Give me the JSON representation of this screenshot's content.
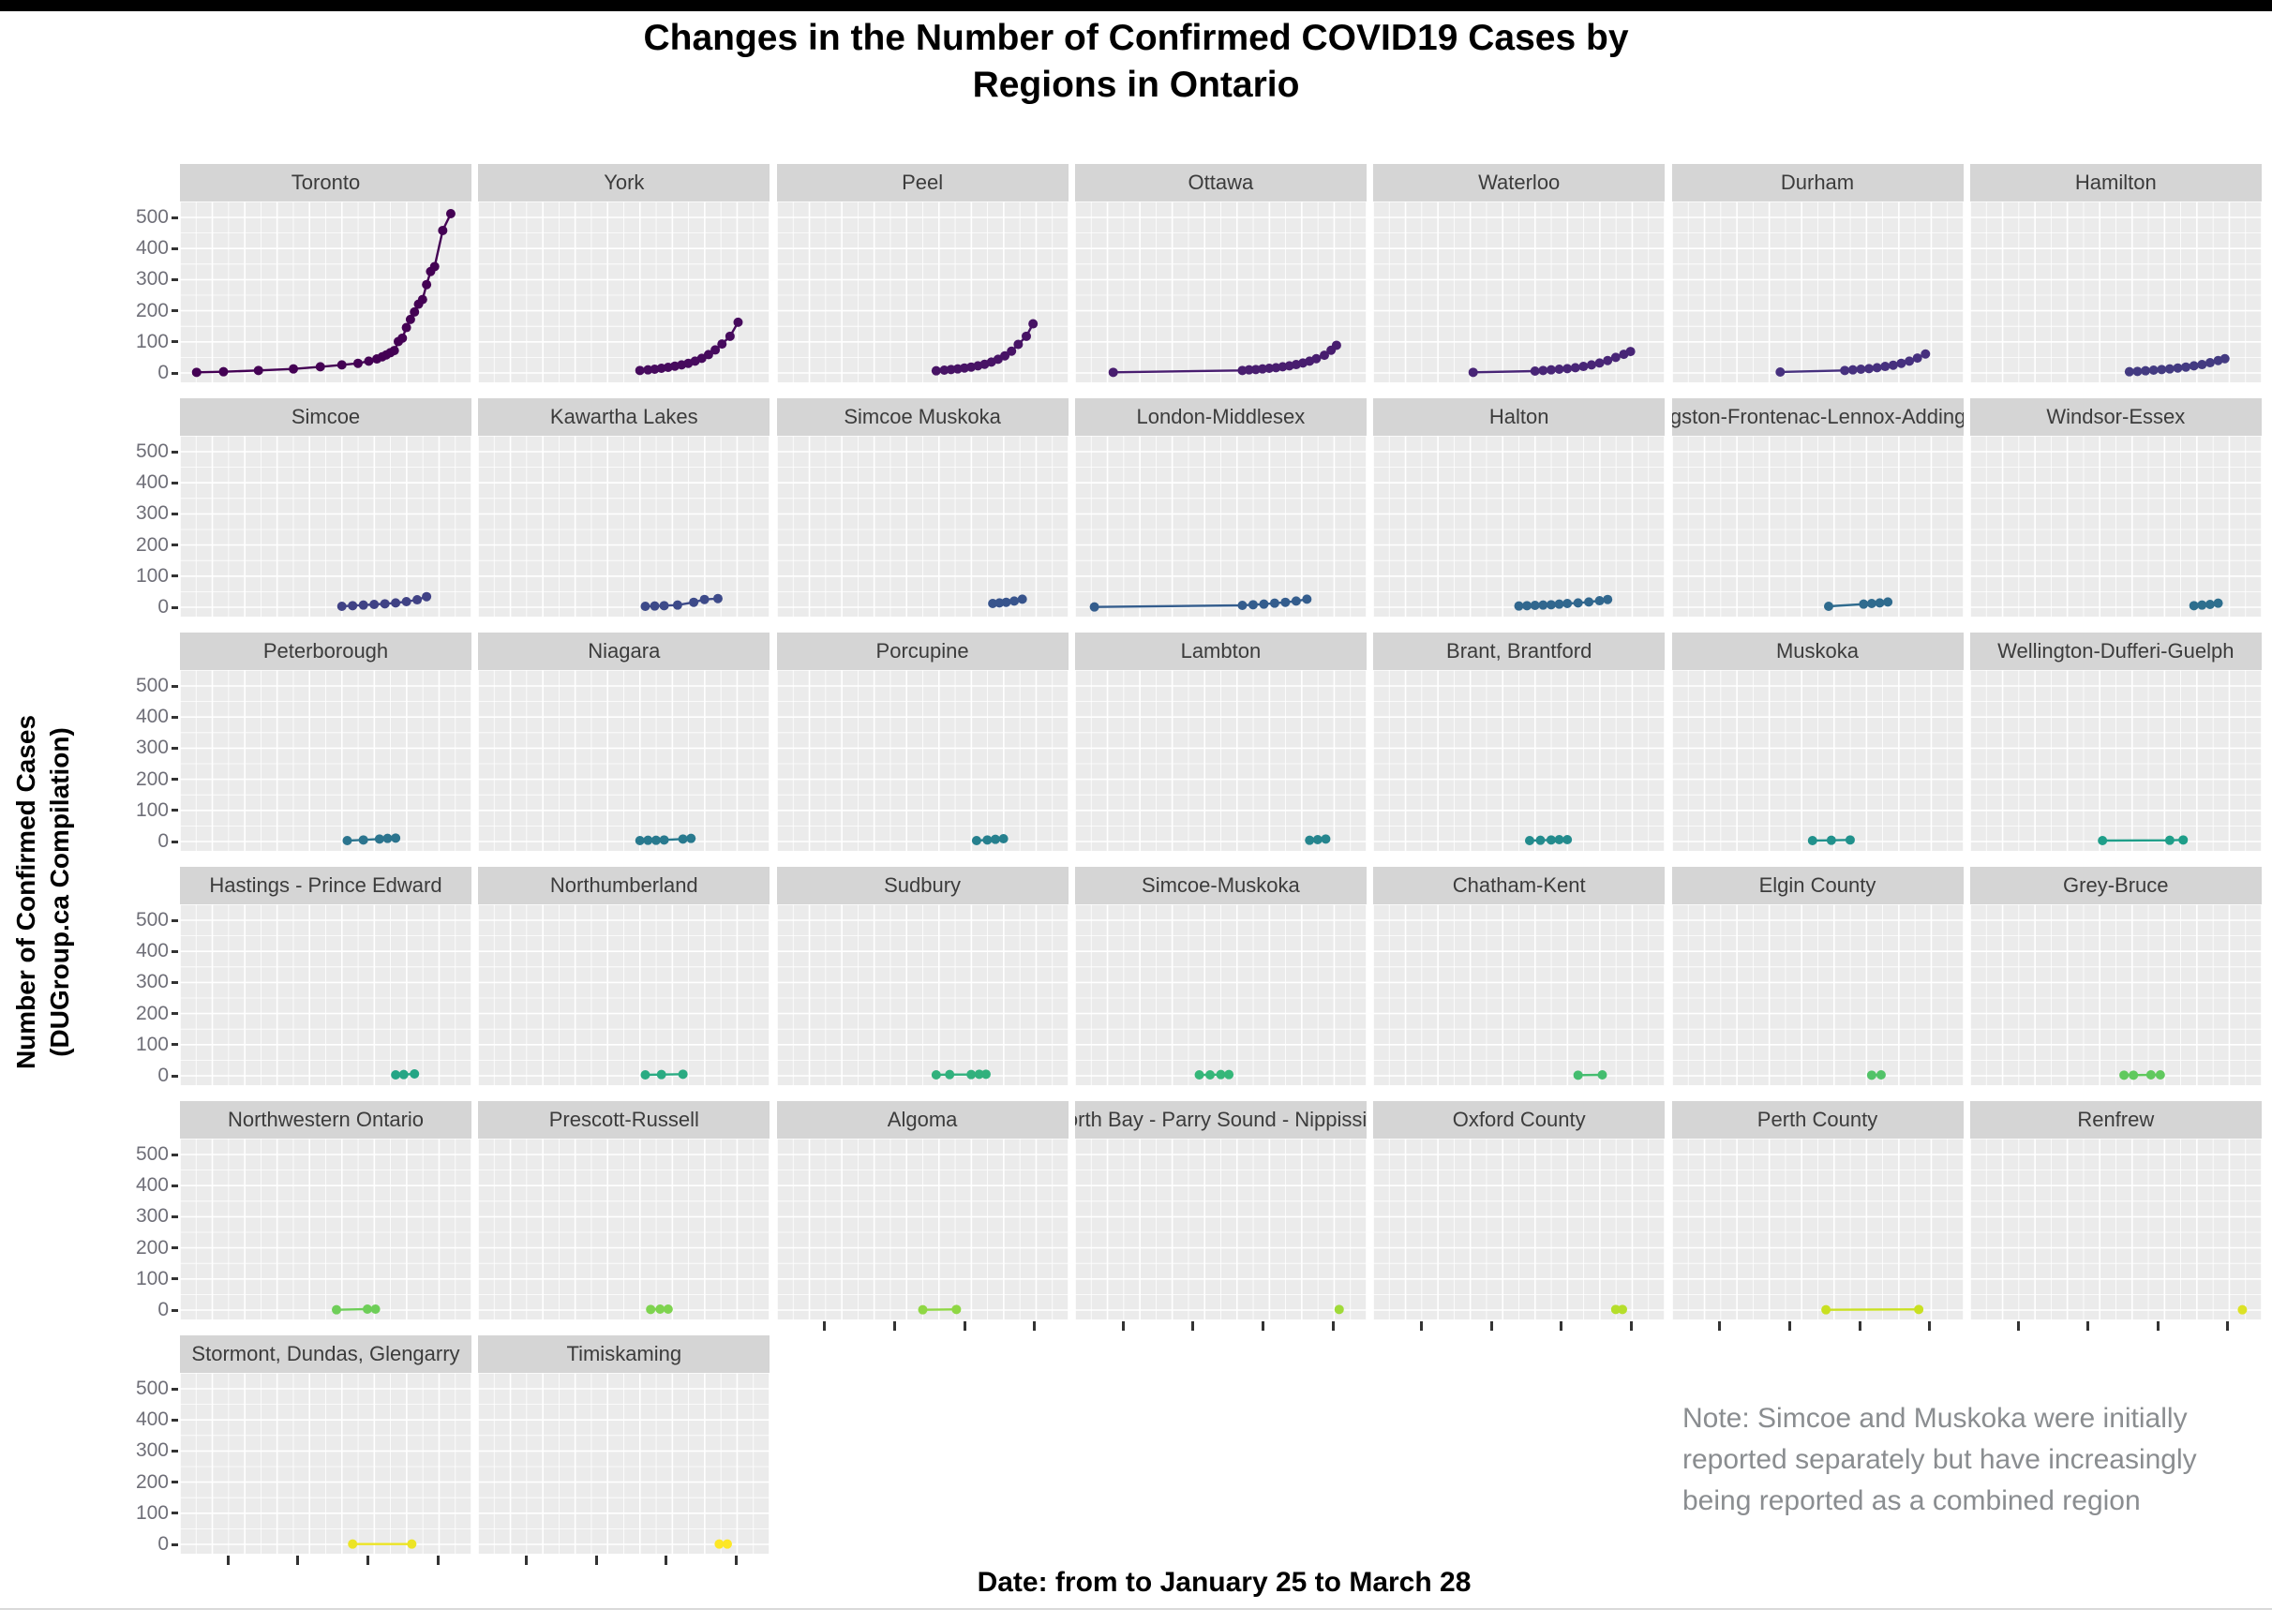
{
  "header": {
    "title_line1": "Changes in the Number of Confirmed COVID19 Cases by",
    "title_line2": "Regions in Ontario"
  },
  "y_axis_title_line1": "Number of Confirmed Cases",
  "y_axis_title_line2": "(DUGroup.ca Compilation)",
  "x_axis_title": "Date: from to January 25 to March 28",
  "note": "Note: Simcoe and Muskoka were initially reported separately but have increasingly being reported as a combined region",
  "chart_data": {
    "type": "line",
    "title": "Changes in the Number of Confirmed COVID19 Cases by Regions in Ontario",
    "xlabel": "Date: from to January 25 to March 28",
    "ylabel": "Number of Confirmed Cases (DUGroup.ca Compilation)",
    "x_range": [
      "January 25",
      "March 28"
    ],
    "x_tick_labels_shown": false,
    "grid": true,
    "facet_layout": {
      "columns": 7,
      "rows": 6,
      "panels_in_last_row": 2
    },
    "y_axis": {
      "ticks": [
        500,
        400,
        300,
        200,
        100,
        0
      ],
      "ylim": [
        0,
        530
      ]
    },
    "panel_background": "#ebebeb",
    "strip_background": "#d5d5d5",
    "regions": [
      {
        "name": "Toronto",
        "color": "#440154",
        "points": [
          [
            0.02,
            2
          ],
          [
            0.12,
            4
          ],
          [
            0.25,
            8
          ],
          [
            0.38,
            13
          ],
          [
            0.48,
            20
          ],
          [
            0.56,
            26
          ],
          [
            0.62,
            31
          ],
          [
            0.66,
            38
          ],
          [
            0.69,
            45
          ],
          [
            0.71,
            52
          ],
          [
            0.725,
            58
          ],
          [
            0.74,
            65
          ],
          [
            0.755,
            72
          ],
          [
            0.77,
            101
          ],
          [
            0.785,
            112
          ],
          [
            0.8,
            146
          ],
          [
            0.815,
            172
          ],
          [
            0.83,
            196
          ],
          [
            0.845,
            221
          ],
          [
            0.86,
            236
          ],
          [
            0.875,
            284
          ],
          [
            0.89,
            326
          ],
          [
            0.905,
            342
          ],
          [
            0.935,
            458
          ],
          [
            0.965,
            512
          ]
        ]
      },
      {
        "name": "York",
        "color": "#460a5d",
        "points": [
          [
            0.56,
            8
          ],
          [
            0.59,
            10
          ],
          [
            0.615,
            12
          ],
          [
            0.64,
            15
          ],
          [
            0.665,
            18
          ],
          [
            0.69,
            22
          ],
          [
            0.715,
            26
          ],
          [
            0.74,
            31
          ],
          [
            0.765,
            38
          ],
          [
            0.79,
            47
          ],
          [
            0.815,
            59
          ],
          [
            0.84,
            74
          ],
          [
            0.865,
            93
          ],
          [
            0.895,
            118
          ],
          [
            0.925,
            163
          ]
        ]
      },
      {
        "name": "Peel",
        "color": "#471365",
        "points": [
          [
            0.55,
            7
          ],
          [
            0.58,
            9
          ],
          [
            0.605,
            11
          ],
          [
            0.63,
            13
          ],
          [
            0.655,
            16
          ],
          [
            0.68,
            19
          ],
          [
            0.705,
            23
          ],
          [
            0.73,
            28
          ],
          [
            0.755,
            35
          ],
          [
            0.78,
            44
          ],
          [
            0.805,
            55
          ],
          [
            0.83,
            70
          ],
          [
            0.855,
            92
          ],
          [
            0.885,
            118
          ],
          [
            0.91,
            158
          ]
        ]
      },
      {
        "name": "Ottawa",
        "color": "#481d6f",
        "points": [
          [
            0.1,
            2
          ],
          [
            0.58,
            8
          ],
          [
            0.605,
            10
          ],
          [
            0.63,
            11
          ],
          [
            0.655,
            13
          ],
          [
            0.68,
            15
          ],
          [
            0.705,
            17
          ],
          [
            0.73,
            20
          ],
          [
            0.755,
            23
          ],
          [
            0.78,
            27
          ],
          [
            0.805,
            32
          ],
          [
            0.83,
            38
          ],
          [
            0.855,
            46
          ],
          [
            0.885,
            57
          ],
          [
            0.91,
            73
          ],
          [
            0.93,
            89
          ]
        ]
      },
      {
        "name": "Waterloo",
        "color": "#482576",
        "points": [
          [
            0.33,
            2
          ],
          [
            0.56,
            6
          ],
          [
            0.59,
            8
          ],
          [
            0.62,
            10
          ],
          [
            0.65,
            12
          ],
          [
            0.68,
            14
          ],
          [
            0.71,
            17
          ],
          [
            0.74,
            21
          ],
          [
            0.77,
            26
          ],
          [
            0.8,
            32
          ],
          [
            0.83,
            40
          ],
          [
            0.86,
            50
          ],
          [
            0.89,
            60
          ],
          [
            0.915,
            69
          ]
        ]
      },
      {
        "name": "Durham",
        "color": "#46307e",
        "points": [
          [
            0.36,
            3
          ],
          [
            0.6,
            8
          ],
          [
            0.63,
            10
          ],
          [
            0.66,
            12
          ],
          [
            0.69,
            14
          ],
          [
            0.72,
            17
          ],
          [
            0.75,
            21
          ],
          [
            0.78,
            25
          ],
          [
            0.81,
            31
          ],
          [
            0.84,
            38
          ],
          [
            0.87,
            48
          ],
          [
            0.9,
            61
          ]
        ]
      },
      {
        "name": "Hamilton",
        "color": "#433a81",
        "points": [
          [
            0.55,
            4
          ],
          [
            0.58,
            5
          ],
          [
            0.61,
            7
          ],
          [
            0.64,
            9
          ],
          [
            0.67,
            11
          ],
          [
            0.7,
            13
          ],
          [
            0.73,
            16
          ],
          [
            0.76,
            19
          ],
          [
            0.79,
            23
          ],
          [
            0.82,
            27
          ],
          [
            0.85,
            33
          ],
          [
            0.88,
            40
          ],
          [
            0.905,
            46
          ]
        ]
      },
      {
        "name": "Simcoe",
        "color": "#404285",
        "points": [
          [
            0.56,
            3
          ],
          [
            0.6,
            5
          ],
          [
            0.64,
            7
          ],
          [
            0.68,
            9
          ],
          [
            0.72,
            11
          ],
          [
            0.76,
            14
          ],
          [
            0.8,
            18
          ],
          [
            0.84,
            24
          ],
          [
            0.875,
            34
          ]
        ]
      },
      {
        "name": "Kawartha Lakes",
        "color": "#3d4a89",
        "points": [
          [
            0.58,
            3
          ],
          [
            0.615,
            4
          ],
          [
            0.65,
            5
          ],
          [
            0.7,
            7
          ],
          [
            0.76,
            16
          ],
          [
            0.8,
            25
          ],
          [
            0.85,
            28
          ]
        ]
      },
      {
        "name": "Simcoe Muskoka",
        "color": "#38548c",
        "points": [
          [
            0.76,
            12
          ],
          [
            0.785,
            14
          ],
          [
            0.81,
            16
          ],
          [
            0.84,
            20
          ],
          [
            0.87,
            26
          ]
        ]
      },
      {
        "name": "London-Middlesex",
        "color": "#345d8d",
        "points": [
          [
            0.03,
            1
          ],
          [
            0.58,
            6
          ],
          [
            0.62,
            8
          ],
          [
            0.66,
            10
          ],
          [
            0.7,
            13
          ],
          [
            0.74,
            16
          ],
          [
            0.78,
            20
          ],
          [
            0.82,
            26
          ]
        ]
      },
      {
        "name": "Halton",
        "color": "#31678e",
        "points": [
          [
            0.5,
            4
          ],
          [
            0.53,
            5
          ],
          [
            0.56,
            6
          ],
          [
            0.59,
            7
          ],
          [
            0.62,
            8
          ],
          [
            0.65,
            10
          ],
          [
            0.68,
            12
          ],
          [
            0.72,
            14
          ],
          [
            0.76,
            17
          ],
          [
            0.8,
            21
          ],
          [
            0.83,
            25
          ]
        ]
      },
      {
        "name": "Kingston-Frontenac-Lennox-Addington",
        "color": "#2f6b8e",
        "points": [
          [
            0.54,
            3
          ],
          [
            0.67,
            10
          ],
          [
            0.7,
            12
          ],
          [
            0.73,
            14
          ],
          [
            0.76,
            17
          ]
        ]
      },
      {
        "name": "Windsor-Essex",
        "color": "#2e6f8e",
        "points": [
          [
            0.79,
            5
          ],
          [
            0.82,
            7
          ],
          [
            0.85,
            9
          ],
          [
            0.88,
            13
          ]
        ]
      },
      {
        "name": "Peterborough",
        "color": "#2b748e",
        "points": [
          [
            0.58,
            3
          ],
          [
            0.64,
            5
          ],
          [
            0.7,
            8
          ],
          [
            0.73,
            10
          ],
          [
            0.76,
            11
          ]
        ]
      },
      {
        "name": "Niagara",
        "color": "#28798e",
        "points": [
          [
            0.56,
            3
          ],
          [
            0.59,
            4
          ],
          [
            0.62,
            4
          ],
          [
            0.65,
            5
          ],
          [
            0.72,
            8
          ],
          [
            0.75,
            10
          ]
        ]
      },
      {
        "name": "Porcupine",
        "color": "#26808e",
        "points": [
          [
            0.7,
            3
          ],
          [
            0.74,
            5
          ],
          [
            0.77,
            7
          ],
          [
            0.8,
            9
          ]
        ]
      },
      {
        "name": "Lambton",
        "color": "#25858e",
        "points": [
          [
            0.83,
            4
          ],
          [
            0.86,
            6
          ],
          [
            0.89,
            8
          ]
        ]
      },
      {
        "name": "Brant, Brantford",
        "color": "#238b8d",
        "points": [
          [
            0.54,
            3
          ],
          [
            0.58,
            4
          ],
          [
            0.62,
            5
          ],
          [
            0.65,
            6
          ],
          [
            0.68,
            6
          ]
        ]
      },
      {
        "name": "Muskoka",
        "color": "#21918c",
        "points": [
          [
            0.48,
            3
          ],
          [
            0.55,
            4
          ],
          [
            0.62,
            5
          ]
        ]
      },
      {
        "name": "Wellington-Dufferi-Guelph",
        "color": "#1f9e89",
        "points": [
          [
            0.45,
            3
          ],
          [
            0.7,
            4
          ],
          [
            0.75,
            5
          ]
        ]
      },
      {
        "name": "Hastings - Prince Edward",
        "color": "#25a585",
        "points": [
          [
            0.76,
            3
          ],
          [
            0.79,
            4
          ],
          [
            0.83,
            6
          ]
        ]
      },
      {
        "name": "Northumberland",
        "color": "#2aab82",
        "points": [
          [
            0.58,
            3
          ],
          [
            0.64,
            4
          ],
          [
            0.72,
            5
          ]
        ]
      },
      {
        "name": "Sudbury",
        "color": "#31b17d",
        "points": [
          [
            0.55,
            3
          ],
          [
            0.6,
            4
          ],
          [
            0.68,
            4
          ],
          [
            0.71,
            5
          ],
          [
            0.735,
            5
          ]
        ]
      },
      {
        "name": "Simcoe-Muskoka",
        "color": "#35b779",
        "points": [
          [
            0.42,
            3
          ],
          [
            0.46,
            3
          ],
          [
            0.5,
            4
          ],
          [
            0.53,
            4
          ]
        ]
      },
      {
        "name": "Chatham-Kent",
        "color": "#44bd6f",
        "points": [
          [
            0.72,
            2
          ],
          [
            0.81,
            3
          ]
        ]
      },
      {
        "name": "Elgin County",
        "color": "#52c368",
        "points": [
          [
            0.7,
            2
          ],
          [
            0.735,
            3
          ]
        ]
      },
      {
        "name": "Grey-Bruce",
        "color": "#60c95e",
        "points": [
          [
            0.53,
            2
          ],
          [
            0.565,
            2
          ],
          [
            0.63,
            3
          ],
          [
            0.665,
            3
          ]
        ]
      },
      {
        "name": "Northwestern Ontario",
        "color": "#6ece58",
        "points": [
          [
            0.54,
            1
          ],
          [
            0.655,
            3
          ],
          [
            0.685,
            3
          ]
        ]
      },
      {
        "name": "Prescott-Russell",
        "color": "#7ed34f",
        "points": [
          [
            0.6,
            2
          ],
          [
            0.635,
            3
          ],
          [
            0.665,
            3
          ]
        ]
      },
      {
        "name": "Algoma",
        "color": "#8fd744",
        "points": [
          [
            0.5,
            1
          ],
          [
            0.625,
            2
          ]
        ]
      },
      {
        "name": "North Bay - Parry Sound - Nippissing",
        "color": "#a0da39",
        "points": [
          [
            0.94,
            2
          ]
        ]
      },
      {
        "name": "Oxford County",
        "color": "#b5de2b",
        "points": [
          [
            0.86,
            2
          ],
          [
            0.885,
            2
          ]
        ]
      },
      {
        "name": "Perth County",
        "color": "#c9e021",
        "points": [
          [
            0.53,
            1
          ],
          [
            0.875,
            2
          ]
        ]
      },
      {
        "name": "Renfrew",
        "color": "#dce226",
        "points": [
          [
            0.97,
            1
          ]
        ]
      },
      {
        "name": "Stormont, Dundas, Glengarry",
        "color": "#ece425",
        "points": [
          [
            0.6,
            1
          ],
          [
            0.82,
            1
          ]
        ]
      },
      {
        "name": "Timiskaming",
        "color": "#fde725",
        "points": [
          [
            0.855,
            1
          ],
          [
            0.885,
            1
          ]
        ]
      }
    ]
  }
}
